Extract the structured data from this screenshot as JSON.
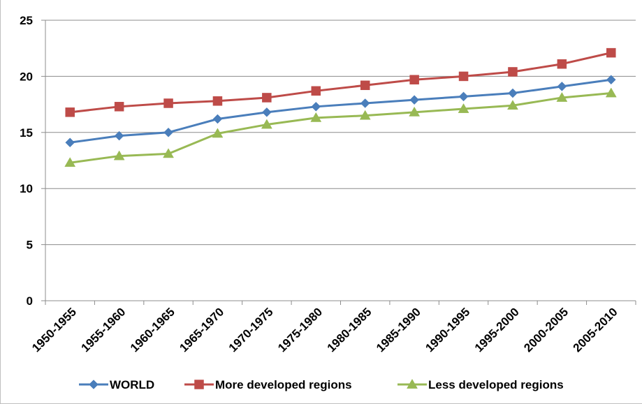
{
  "chart_data": {
    "type": "line",
    "title": "",
    "xlabel": "",
    "ylabel": "",
    "ylim": [
      0,
      25
    ],
    "yticks": [
      0,
      5,
      10,
      15,
      20,
      25
    ],
    "grid": true,
    "legend_position": "bottom",
    "categories": [
      "1950-1955",
      "1955-1960",
      "1960-1965",
      "1965-1970",
      "1970-1975",
      "1975-1980",
      "1980-1985",
      "1985-1990",
      "1990-1995",
      "1995-2000",
      "2000-2005",
      "2005-2010"
    ],
    "series": [
      {
        "name": "WORLD",
        "color": "#4a7ebb",
        "marker": "diamond",
        "values": [
          14.1,
          14.7,
          15.0,
          16.2,
          16.8,
          17.3,
          17.6,
          17.9,
          18.2,
          18.5,
          19.1,
          19.7
        ]
      },
      {
        "name": "More developed regions",
        "color": "#be4b48",
        "marker": "square",
        "values": [
          16.8,
          17.3,
          17.6,
          17.8,
          18.1,
          18.7,
          19.2,
          19.7,
          20.0,
          20.4,
          21.1,
          22.1
        ]
      },
      {
        "name": "Less developed regions",
        "color": "#98b954",
        "marker": "triangle",
        "values": [
          12.3,
          12.9,
          13.1,
          14.9,
          15.7,
          16.3,
          16.5,
          16.8,
          17.1,
          17.4,
          18.1,
          18.5
        ]
      }
    ]
  }
}
